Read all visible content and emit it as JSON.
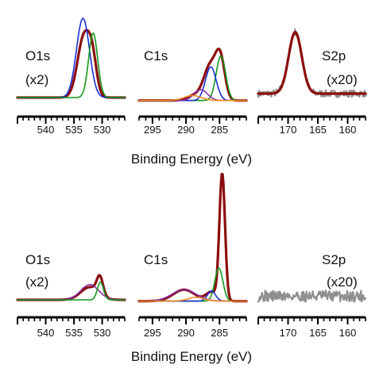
{
  "chart_data": [
    {
      "id": "top",
      "type": "line",
      "xlabel": "Binding Energy (eV)",
      "panels": [
        {
          "element": "O1s",
          "scale": "(x2)",
          "xlim": [
            545,
            526
          ],
          "ticks": [
            540,
            535,
            530
          ],
          "series": [
            {
              "name": "envelope",
              "color": "#8b0d0d",
              "width": 3.2,
              "baseline": 0.08,
              "peaks": [
                {
                  "center": 533.2,
                  "sigma": 1.15,
                  "amp": 0.62
                },
                {
                  "center": 531.7,
                  "sigma": 0.75,
                  "amp": 0.28
                }
              ]
            },
            {
              "name": "component-1",
              "color": "#1b2fd6",
              "width": 1.6,
              "baseline": 0.08,
              "peaks": [
                {
                  "center": 533.4,
                  "sigma": 1.15,
                  "amp": 0.8
                }
              ]
            },
            {
              "name": "component-2",
              "color": "#15961a",
              "width": 1.6,
              "baseline": 0.08,
              "peaks": [
                {
                  "center": 531.6,
                  "sigma": 0.8,
                  "amp": 0.65
                }
              ]
            }
          ]
        },
        {
          "element": "C1s",
          "scale": "",
          "xlim": [
            297,
            281
          ],
          "ticks": [
            295,
            290,
            285
          ],
          "series": [
            {
              "name": "envelope",
              "color": "#8b0d0d",
              "width": 3.2,
              "baseline": 0.05,
              "peaks": [
                {
                  "center": 286.4,
                  "sigma": 0.9,
                  "amp": 0.33
                },
                {
                  "center": 284.9,
                  "sigma": 0.7,
                  "amp": 0.42
                },
                {
                  "center": 288.4,
                  "sigma": 1.2,
                  "amp": 0.06
                }
              ]
            },
            {
              "name": "component-1",
              "color": "#15961a",
              "width": 1.6,
              "baseline": 0.05,
              "peaks": [
                {
                  "center": 284.8,
                  "sigma": 0.7,
                  "amp": 0.45
                }
              ]
            },
            {
              "name": "component-2",
              "color": "#1b2fd6",
              "width": 1.6,
              "baseline": 0.05,
              "peaks": [
                {
                  "center": 286.3,
                  "sigma": 0.8,
                  "amp": 0.34
                }
              ]
            },
            {
              "name": "component-3",
              "color": "#8a2fa8",
              "width": 1.6,
              "baseline": 0.05,
              "peaks": [
                {
                  "center": 287.8,
                  "sigma": 1.0,
                  "amp": 0.11
                }
              ]
            },
            {
              "name": "component-4",
              "color": "#f08a1e",
              "width": 1.6,
              "baseline": 0.05,
              "peaks": [
                {
                  "center": 289.0,
                  "sigma": 1.3,
                  "amp": 0.05
                }
              ]
            }
          ]
        },
        {
          "element": "S2p",
          "scale": "(x20)",
          "xlim": [
            175,
            157
          ],
          "ticks": [
            170,
            165,
            160
          ],
          "series": [
            {
              "name": "data",
              "color": "#8f8f8f",
              "width": 2.2,
              "baseline": 0.12,
              "noise": 0.035,
              "seed": 7,
              "peaks": [
                {
                  "center": 168.8,
                  "sigma": 1.1,
                  "amp": 0.62
                }
              ]
            },
            {
              "name": "fit",
              "color": "#8b0d0d",
              "width": 3.2,
              "baseline": 0.12,
              "peaks": [
                {
                  "center": 168.8,
                  "sigma": 1.1,
                  "amp": 0.62
                }
              ]
            }
          ]
        }
      ]
    },
    {
      "id": "bottom",
      "type": "line",
      "xlabel": "Binding Energy (eV)",
      "panels": [
        {
          "element": "O1s",
          "scale": "(x2)",
          "xlim": [
            545,
            526
          ],
          "ticks": [
            540,
            535,
            530
          ],
          "series": [
            {
              "name": "envelope",
              "color": "#8b0d0d",
              "width": 3.2,
              "baseline": 0.05,
              "peaks": [
                {
                  "center": 532.2,
                  "sigma": 1.6,
                  "amp": 0.1
                },
                {
                  "center": 530.4,
                  "sigma": 0.55,
                  "amp": 0.14
                }
              ]
            },
            {
              "name": "component-1",
              "color": "#8a2fa8",
              "width": 1.6,
              "baseline": 0.05,
              "peaks": [
                {
                  "center": 532.2,
                  "sigma": 1.6,
                  "amp": 0.12
                }
              ]
            },
            {
              "name": "component-2",
              "color": "#15961a",
              "width": 1.6,
              "baseline": 0.05,
              "peaks": [
                {
                  "center": 530.3,
                  "sigma": 0.55,
                  "amp": 0.14
                }
              ]
            }
          ]
        },
        {
          "element": "C1s",
          "scale": "",
          "xlim": [
            297,
            281
          ],
          "ticks": [
            295,
            290,
            285
          ],
          "series": [
            {
              "name": "envelope",
              "color": "#8b0d0d",
              "width": 3.2,
              "baseline": 0.04,
              "peaks": [
                {
                  "center": 284.6,
                  "sigma": 0.42,
                  "amp": 1.0
                },
                {
                  "center": 290.3,
                  "sigma": 1.6,
                  "amp": 0.09
                },
                {
                  "center": 286.2,
                  "sigma": 0.8,
                  "amp": 0.07
                }
              ]
            },
            {
              "name": "component-1",
              "color": "#15961a",
              "width": 1.6,
              "baseline": 0.04,
              "peaks": [
                {
                  "center": 285.1,
                  "sigma": 0.6,
                  "amp": 0.26
                }
              ]
            },
            {
              "name": "component-2",
              "color": "#1b2fd6",
              "width": 1.6,
              "baseline": 0.04,
              "peaks": [
                {
                  "center": 286.2,
                  "sigma": 0.6,
                  "amp": 0.08
                }
              ]
            },
            {
              "name": "component-3",
              "color": "#8a2fa8",
              "width": 1.6,
              "baseline": 0.04,
              "peaks": [
                {
                  "center": 290.3,
                  "sigma": 1.8,
                  "amp": 0.09
                }
              ]
            },
            {
              "name": "component-4",
              "color": "#f08a1e",
              "width": 1.6,
              "baseline": 0.04,
              "peaks": [
                {
                  "center": 288.5,
                  "sigma": 1.2,
                  "amp": 0.03
                }
              ]
            }
          ]
        },
        {
          "element": "S2p",
          "scale": "(x20)",
          "xlim": [
            175,
            157
          ],
          "ticks": [
            170,
            165,
            160
          ],
          "series": [
            {
              "name": "data",
              "color": "#8f8f8f",
              "width": 2.2,
              "baseline": 0.08,
              "noise": 0.045,
              "seed": 31,
              "peaks": []
            }
          ]
        }
      ]
    }
  ]
}
